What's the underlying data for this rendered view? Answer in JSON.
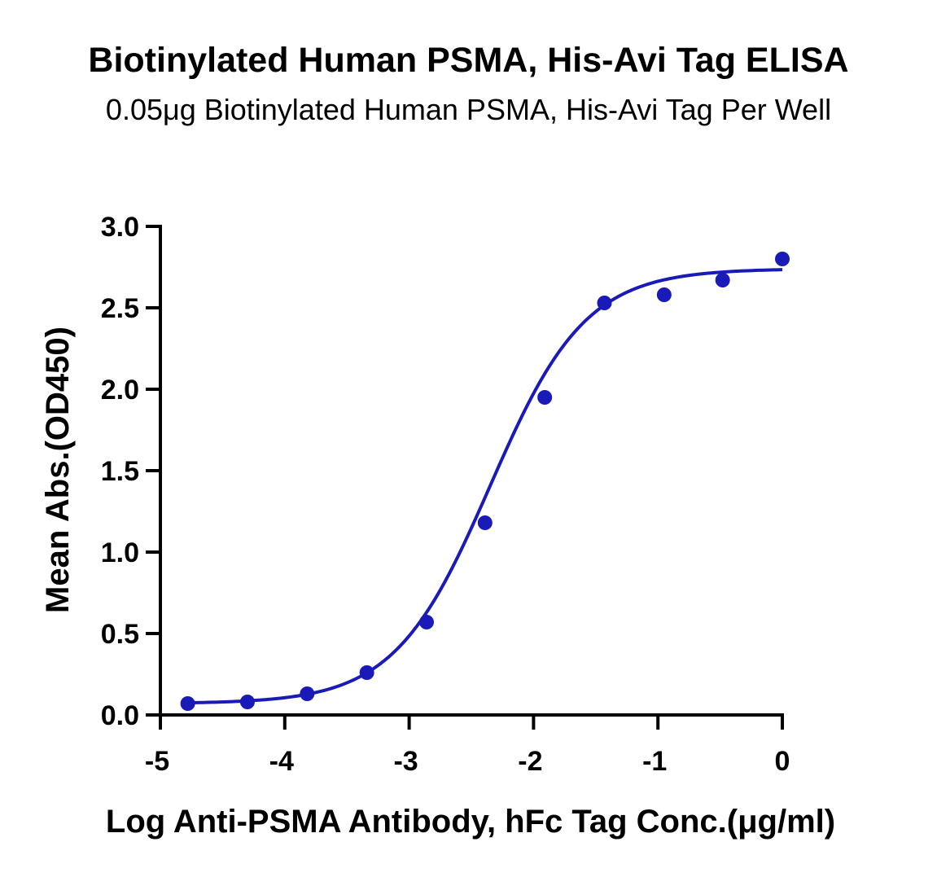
{
  "chart_data": {
    "type": "scatter",
    "title": "Biotinylated Human PSMA, His-Avi Tag ELISA",
    "subtitle": "0.05μg Biotinylated Human PSMA, His-Avi Tag Per Well",
    "xlabel": "Log Anti-PSMA Antibody, hFc Tag Conc.(μg/ml)",
    "ylabel": "Mean Abs.(OD450)",
    "xlim": [
      -5,
      0
    ],
    "ylim": [
      0,
      3.0
    ],
    "x_ticks": [
      "-5",
      "-4",
      "-3",
      "-2",
      "-1",
      "0"
    ],
    "y_ticks": [
      "0.0",
      "0.5",
      "1.0",
      "1.5",
      "2.0",
      "2.5",
      "3.0"
    ],
    "grid": false,
    "color": "#1a1ab8",
    "series": [
      {
        "x": [
          -4.78,
          -4.3,
          -3.82,
          -3.34,
          -2.86,
          -2.39,
          -1.91,
          -1.43,
          -0.95,
          -0.48,
          0.0
        ],
        "values": [
          0.07,
          0.08,
          0.13,
          0.26,
          0.57,
          1.18,
          1.95,
          2.53,
          2.58,
          2.67,
          2.8
        ]
      }
    ],
    "fit_curve": {
      "model": "4PL",
      "bottom": 0.07,
      "top": 2.74,
      "logEC50": -2.35,
      "hill": 1.13
    }
  }
}
